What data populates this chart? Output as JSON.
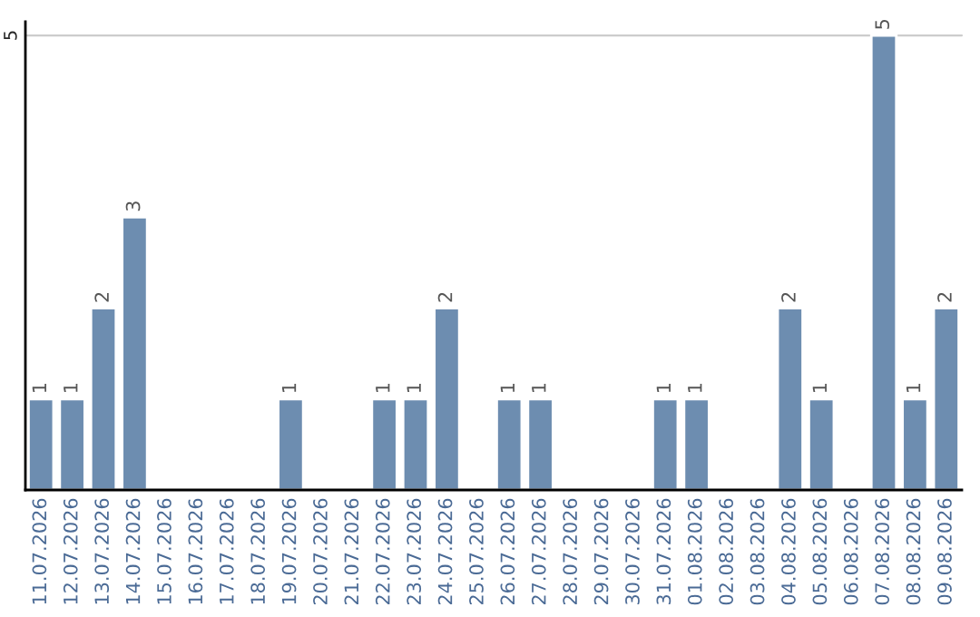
{
  "chart_data": {
    "type": "bar",
    "categories": [
      "11.07.2026",
      "12.07.2026",
      "13.07.2026",
      "14.07.2026",
      "15.07.2026",
      "16.07.2026",
      "17.07.2026",
      "18.07.2026",
      "19.07.2026",
      "20.07.2026",
      "21.07.2026",
      "22.07.2026",
      "23.07.2026",
      "24.07.2026",
      "25.07.2026",
      "26.07.2026",
      "27.07.2026",
      "28.07.2026",
      "29.07.2026",
      "30.07.2026",
      "31.07.2026",
      "01.08.2026",
      "02.08.2026",
      "03.08.2026",
      "04.08.2026",
      "05.08.2026",
      "06.08.2026",
      "07.08.2026",
      "08.08.2026",
      "09.08.2026"
    ],
    "values": [
      1,
      1,
      2,
      3,
      null,
      null,
      null,
      null,
      1,
      null,
      null,
      1,
      1,
      2,
      null,
      1,
      1,
      null,
      null,
      null,
      1,
      1,
      null,
      null,
      2,
      1,
      null,
      5,
      1,
      2
    ],
    "value_labels": [
      "1",
      "1",
      "2",
      "3",
      null,
      null,
      null,
      null,
      "1",
      null,
      null,
      "1",
      "1",
      "2",
      null,
      "1",
      "1",
      null,
      null,
      null,
      "1",
      "1",
      null,
      null,
      "2",
      "1",
      null,
      "5",
      "1",
      "2"
    ],
    "color": "#6d8db0",
    "ylim": [
      0,
      5.15
    ],
    "yticks": [
      5
    ],
    "grid": "y",
    "legend": false
  }
}
